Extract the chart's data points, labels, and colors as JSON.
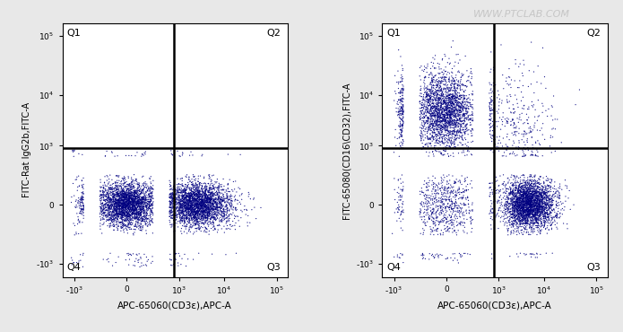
{
  "fig_width": 6.95,
  "fig_height": 3.7,
  "dpi": 100,
  "bg_color": "#e8e8e8",
  "plot_bg": "#ffffff",
  "watermark": "WWW.PTCLAB.COM",
  "watermark_color": "#c0c0c0",
  "watermark_fontsize": 8,
  "gate_x_val": 700,
  "gate_y_val": 900,
  "subplot1_ylabel": "FITC-Rat IgG2b,FITC-A",
  "subplot1_xlabel": "APC-65060(CD3ε),APC-A",
  "subplot2_ylabel": "FITC-65080(CD16\\CD32),FITC-A",
  "subplot2_xlabel": "APC-65060(CD3ε),APC-A",
  "tick_positions": [
    -1000,
    0,
    1000,
    10000,
    100000
  ],
  "tick_labels": [
    "-10$^3$",
    "0",
    "10$^3$",
    "10$^4$",
    "10$^5$"
  ],
  "xlim": [
    -2500,
    160000
  ],
  "ylim": [
    -2500,
    160000
  ]
}
